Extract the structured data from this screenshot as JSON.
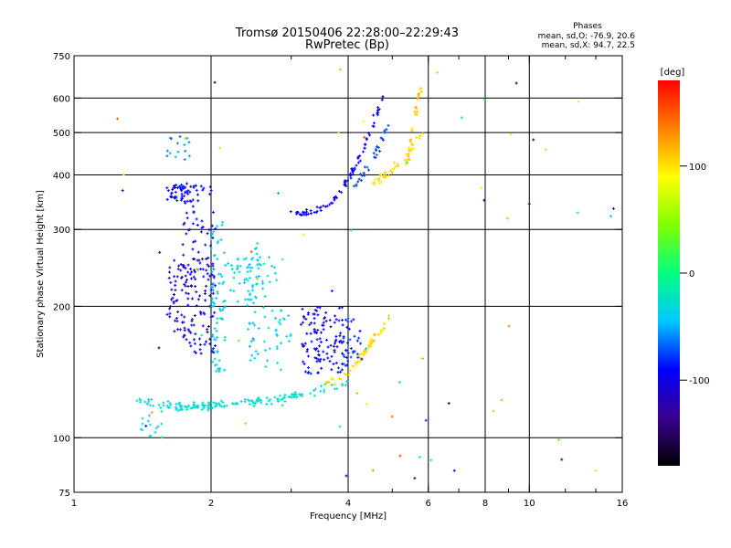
{
  "chart_data": {
    "type": "scatter",
    "title": "Tromsø 20150406 22:28:00–22:29:43",
    "subtitle": "RwPretec (Bp)",
    "annotation": {
      "title": "Phases",
      "line1": "mean, sd,O: -76.9, 20.6",
      "line2": "mean, sd,X:  94.7, 22.5"
    },
    "xlabel": "Frequency [MHz]",
    "ylabel": "Stationary phase Virtual Height [km]",
    "x_scale": "log2",
    "y_scale": "log",
    "xlim": [
      1,
      16
    ],
    "ylim": [
      75,
      750
    ],
    "grid": true,
    "x_ticks": [
      {
        "value": 1,
        "label": "1"
      },
      {
        "value": 2,
        "label": "2"
      },
      {
        "value": 4,
        "label": "4"
      },
      {
        "value": 6,
        "label": "6"
      },
      {
        "value": 8,
        "label": "8"
      },
      {
        "value": 10,
        "label": "10"
      },
      {
        "value": 16,
        "label": "16"
      }
    ],
    "x_gridlines": [
      2,
      4,
      6,
      8,
      10
    ],
    "x_minor_ticks": [
      3,
      5,
      7,
      9,
      12,
      14
    ],
    "y_ticks": [
      {
        "value": 75,
        "label": "75"
      },
      {
        "value": 100,
        "label": "100"
      },
      {
        "value": 200,
        "label": "200"
      },
      {
        "value": 300,
        "label": "300"
      },
      {
        "value": 400,
        "label": "400"
      },
      {
        "value": 500,
        "label": "500"
      },
      {
        "value": 600,
        "label": "600"
      },
      {
        "value": 750,
        "label": "750"
      }
    ],
    "y_gridlines": [
      100,
      200,
      300,
      400,
      500,
      600
    ],
    "colorbar": {
      "label": "[deg]",
      "range": [
        -180,
        180
      ],
      "ticks": [
        {
          "value": 100,
          "label": "100"
        },
        {
          "value": 0,
          "label": "0"
        },
        {
          "value": -100,
          "label": "-100"
        }
      ],
      "stops": [
        "#000000",
        "#3a0090",
        "#0000ff",
        "#00c8ff",
        "#00ff7f",
        "#7fff00",
        "#ffff00",
        "#ff8000",
        "#ff0000"
      ]
    },
    "clusters": [
      {
        "kind": "curve",
        "x": [
          1.68,
          1.8,
          2.0,
          2.4,
          2.8,
          3.2,
          3.6,
          4.0
        ],
        "y": [
          118,
          117,
          119,
          121,
          123,
          126,
          130,
          133
        ],
        "phase": -25,
        "n": 100,
        "spread": 0.03
      },
      {
        "kind": "curve",
        "x": [
          1.35,
          1.5,
          1.7,
          2.0,
          2.4,
          3.0
        ],
        "y": [
          122,
          120,
          118,
          118,
          120,
          122
        ],
        "phase": -30,
        "n": 70,
        "spread": 0.04
      },
      {
        "kind": "curve",
        "x": [
          3.6,
          3.8,
          4.0,
          4.2,
          4.4,
          4.6
        ],
        "y": [
          133,
          135,
          140,
          150,
          160,
          175
        ],
        "phase": 100,
        "n": 35,
        "spread": 0.03
      },
      {
        "kind": "curve",
        "x": [
          3.0,
          3.2,
          3.4,
          3.6,
          3.8,
          4.0,
          4.2,
          4.4,
          4.6,
          4.8
        ],
        "y": [
          330,
          325,
          330,
          340,
          360,
          390,
          430,
          480,
          540,
          610
        ],
        "phase": -95,
        "n": 90,
        "spread": 0.03
      },
      {
        "kind": "curve",
        "x": [
          4.1,
          4.3,
          4.5,
          4.7,
          4.9
        ],
        "y": [
          370,
          400,
          430,
          470,
          520
        ],
        "phase": -75,
        "n": 30,
        "spread": 0.03
      },
      {
        "kind": "curve",
        "x": [
          4.5,
          4.8,
          5.1,
          5.4,
          5.8
        ],
        "y": [
          380,
          400,
          420,
          450,
          500
        ],
        "phase": 100,
        "n": 40,
        "spread": 0.04
      },
      {
        "kind": "curve",
        "x": [
          5.4,
          5.5,
          5.6,
          5.7,
          5.8
        ],
        "y": [
          420,
          480,
          540,
          600,
          650
        ],
        "phase": 110,
        "n": 30,
        "spread": 0.03
      },
      {
        "kind": "curve",
        "x": [
          4.2,
          4.4,
          4.6,
          4.8,
          5.0
        ],
        "y": [
          150,
          160,
          170,
          180,
          190
        ],
        "phase": 105,
        "n": 25,
        "spread": 0.04
      },
      {
        "kind": "box",
        "x": [
          1.72,
          2.05
        ],
        "y": [
          155,
          390
        ],
        "phase": -95,
        "n": 150
      },
      {
        "kind": "box",
        "x": [
          1.6,
          1.85
        ],
        "y": [
          170,
          260
        ],
        "phase": -105,
        "n": 60
      },
      {
        "kind": "box",
        "x": [
          1.6,
          1.78
        ],
        "y": [
          345,
          380
        ],
        "phase": -90,
        "n": 35
      },
      {
        "kind": "box",
        "x": [
          2.0,
          2.15
        ],
        "y": [
          140,
          320
        ],
        "phase": -40,
        "n": 70
      },
      {
        "kind": "box",
        "x": [
          2.15,
          2.8
        ],
        "y": [
          200,
          260
        ],
        "phase": -35,
        "n": 50
      },
      {
        "kind": "box",
        "x": [
          2.4,
          2.55
        ],
        "y": [
          150,
          280
        ],
        "phase": -40,
        "n": 40
      },
      {
        "kind": "box",
        "x": [
          2.6,
          3.0
        ],
        "y": [
          140,
          200
        ],
        "phase": -30,
        "n": 30
      },
      {
        "kind": "box",
        "x": [
          3.15,
          3.9
        ],
        "y": [
          140,
          200
        ],
        "phase": -95,
        "n": 110
      },
      {
        "kind": "box",
        "x": [
          3.9,
          4.3
        ],
        "y": [
          145,
          190
        ],
        "phase": -85,
        "n": 35
      },
      {
        "kind": "box",
        "x": [
          1.4,
          1.6
        ],
        "y": [
          100,
          115
        ],
        "phase": -30,
        "n": 15
      },
      {
        "kind": "box",
        "x": [
          1.6,
          1.8
        ],
        "y": [
          430,
          500
        ],
        "phase": -60,
        "n": 15
      },
      {
        "kind": "scatter",
        "x": [
          1.2,
          16
        ],
        "y": [
          80,
          720
        ],
        "phase": 0,
        "n": 70,
        "random_phase": true
      }
    ]
  }
}
